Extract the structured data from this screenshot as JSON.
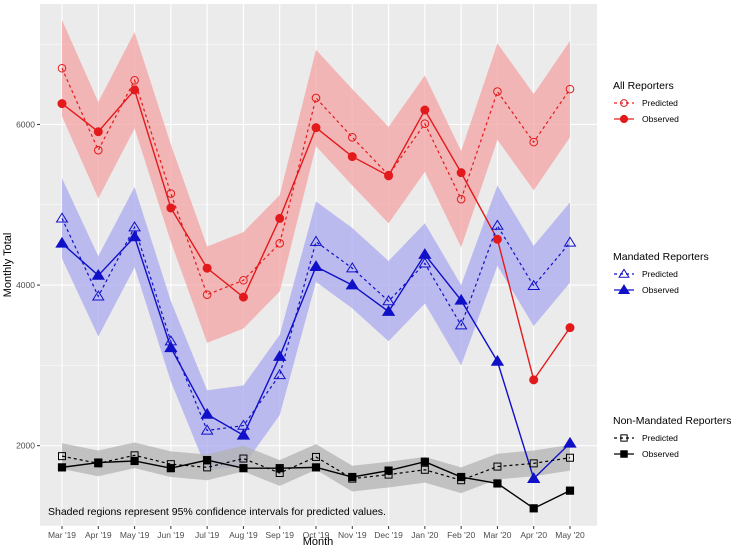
{
  "chart_data": {
    "type": "line",
    "xlabel": "Month",
    "ylabel": "Monthly Total",
    "ylim": [
      1000,
      7500
    ],
    "yticks": [
      2000,
      4000,
      6000
    ],
    "categories": [
      "Mar '19",
      "Apr '19",
      "May '19",
      "Jun '19",
      "Jul '19",
      "Aug '19",
      "Sep '19",
      "Oct '19",
      "Nov '19",
      "Dec '19",
      "Jan '20",
      "Feb '20",
      "Mar '20",
      "Apr '20",
      "May '20"
    ],
    "note": "Shaded regions represent 95% confidence intervals for predicted values.",
    "groups": [
      {
        "key": "all",
        "title": "All Reporters",
        "color": "#e31a1c",
        "band_color": "#f4a3a3",
        "marker": "circle",
        "predicted_label": "Predicted",
        "observed_label": "Observed",
        "predicted": [
          6700,
          5680,
          6550,
          5140,
          3880,
          4060,
          4520,
          6330,
          5840,
          5370,
          6010,
          5070,
          6410,
          5780,
          6440
        ],
        "observed": [
          6260,
          5910,
          6430,
          4960,
          4210,
          3850,
          4830,
          5960,
          5600,
          5360,
          6180,
          5400,
          4570,
          2820,
          3470
        ],
        "upper": [
          7300,
          6280,
          7150,
          5750,
          4480,
          4660,
          5120,
          6930,
          6440,
          5970,
          6610,
          5670,
          7010,
          6380,
          7040
        ],
        "lower": [
          6100,
          5080,
          5950,
          4540,
          3280,
          3460,
          3920,
          5730,
          5240,
          4770,
          5410,
          4470,
          5810,
          5180,
          5840
        ]
      },
      {
        "key": "mandated",
        "title": "Mandated Reporters",
        "color": "#1010c8",
        "band_color": "#a9a9f0",
        "marker": "triangle",
        "predicted_label": "Predicted",
        "observed_label": "Observed",
        "predicted": [
          4830,
          3860,
          4720,
          3300,
          2190,
          2250,
          2880,
          4540,
          4210,
          3800,
          4270,
          3500,
          4740,
          3990,
          4530
        ],
        "observed": [
          4520,
          4120,
          4600,
          3220,
          2390,
          2130,
          3110,
          4230,
          4000,
          3670,
          4380,
          3810,
          3050,
          1590,
          2030
        ],
        "upper": [
          5330,
          4360,
          5220,
          3800,
          2690,
          2750,
          3380,
          5040,
          4710,
          4300,
          4770,
          4000,
          5240,
          4490,
          5030
        ],
        "lower": [
          4330,
          3360,
          4220,
          2800,
          1690,
          1750,
          2380,
          4040,
          3710,
          3300,
          3770,
          3000,
          4240,
          3490,
          4030
        ]
      },
      {
        "key": "nonmandated",
        "title": "Non-Mandated Reporters",
        "color": "#000000",
        "band_color": "#b3b3b3",
        "marker": "square",
        "predicted_label": "Predicted",
        "observed_label": "Observed",
        "predicted": [
          1870,
          1780,
          1880,
          1770,
          1730,
          1840,
          1660,
          1860,
          1590,
          1640,
          1700,
          1570,
          1740,
          1780,
          1850
        ],
        "observed": [
          1730,
          1790,
          1810,
          1720,
          1820,
          1720,
          1720,
          1730,
          1610,
          1690,
          1800,
          1610,
          1530,
          1220,
          1440
        ],
        "upper": [
          2030,
          1940,
          2040,
          1930,
          1890,
          2000,
          1820,
          2020,
          1750,
          1800,
          1860,
          1730,
          1900,
          1940,
          2010
        ],
        "lower": [
          1710,
          1620,
          1720,
          1610,
          1570,
          1680,
          1500,
          1700,
          1430,
          1480,
          1540,
          1410,
          1580,
          1620,
          1690
        ]
      }
    ]
  }
}
